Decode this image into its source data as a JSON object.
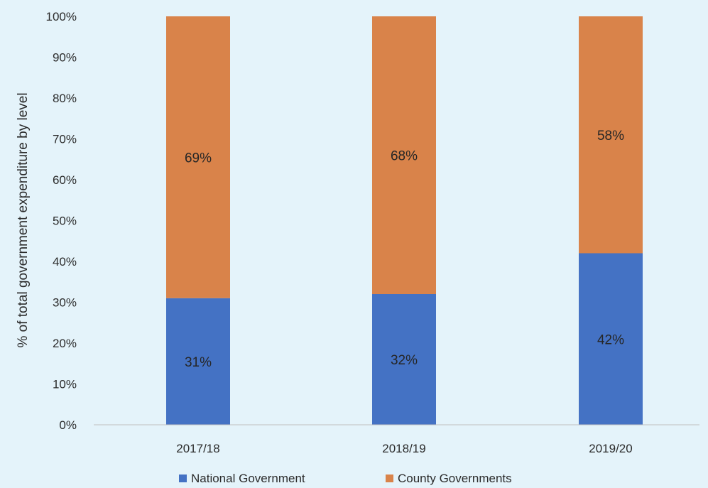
{
  "chart_data": {
    "type": "bar",
    "stacked": true,
    "percent": true,
    "categories": [
      "2017/18",
      "2018/19",
      "2019/20"
    ],
    "series": [
      {
        "name": "National Government",
        "values": [
          31,
          32,
          42
        ],
        "labels": [
          "31%",
          "32%",
          "42%"
        ],
        "color": "#4472c4"
      },
      {
        "name": "County Governments",
        "values": [
          69,
          68,
          58
        ],
        "labels": [
          "69%",
          "68%",
          "58%"
        ],
        "color": "#d9834a"
      }
    ],
    "ylabel": "% of total government expenditure by level",
    "xlabel": "",
    "ylim": [
      0,
      100
    ],
    "yticks": [
      "0%",
      "10%",
      "20%",
      "30%",
      "40%",
      "50%",
      "60%",
      "70%",
      "80%",
      "90%",
      "100%"
    ],
    "grid": false,
    "legend": "bottom"
  }
}
